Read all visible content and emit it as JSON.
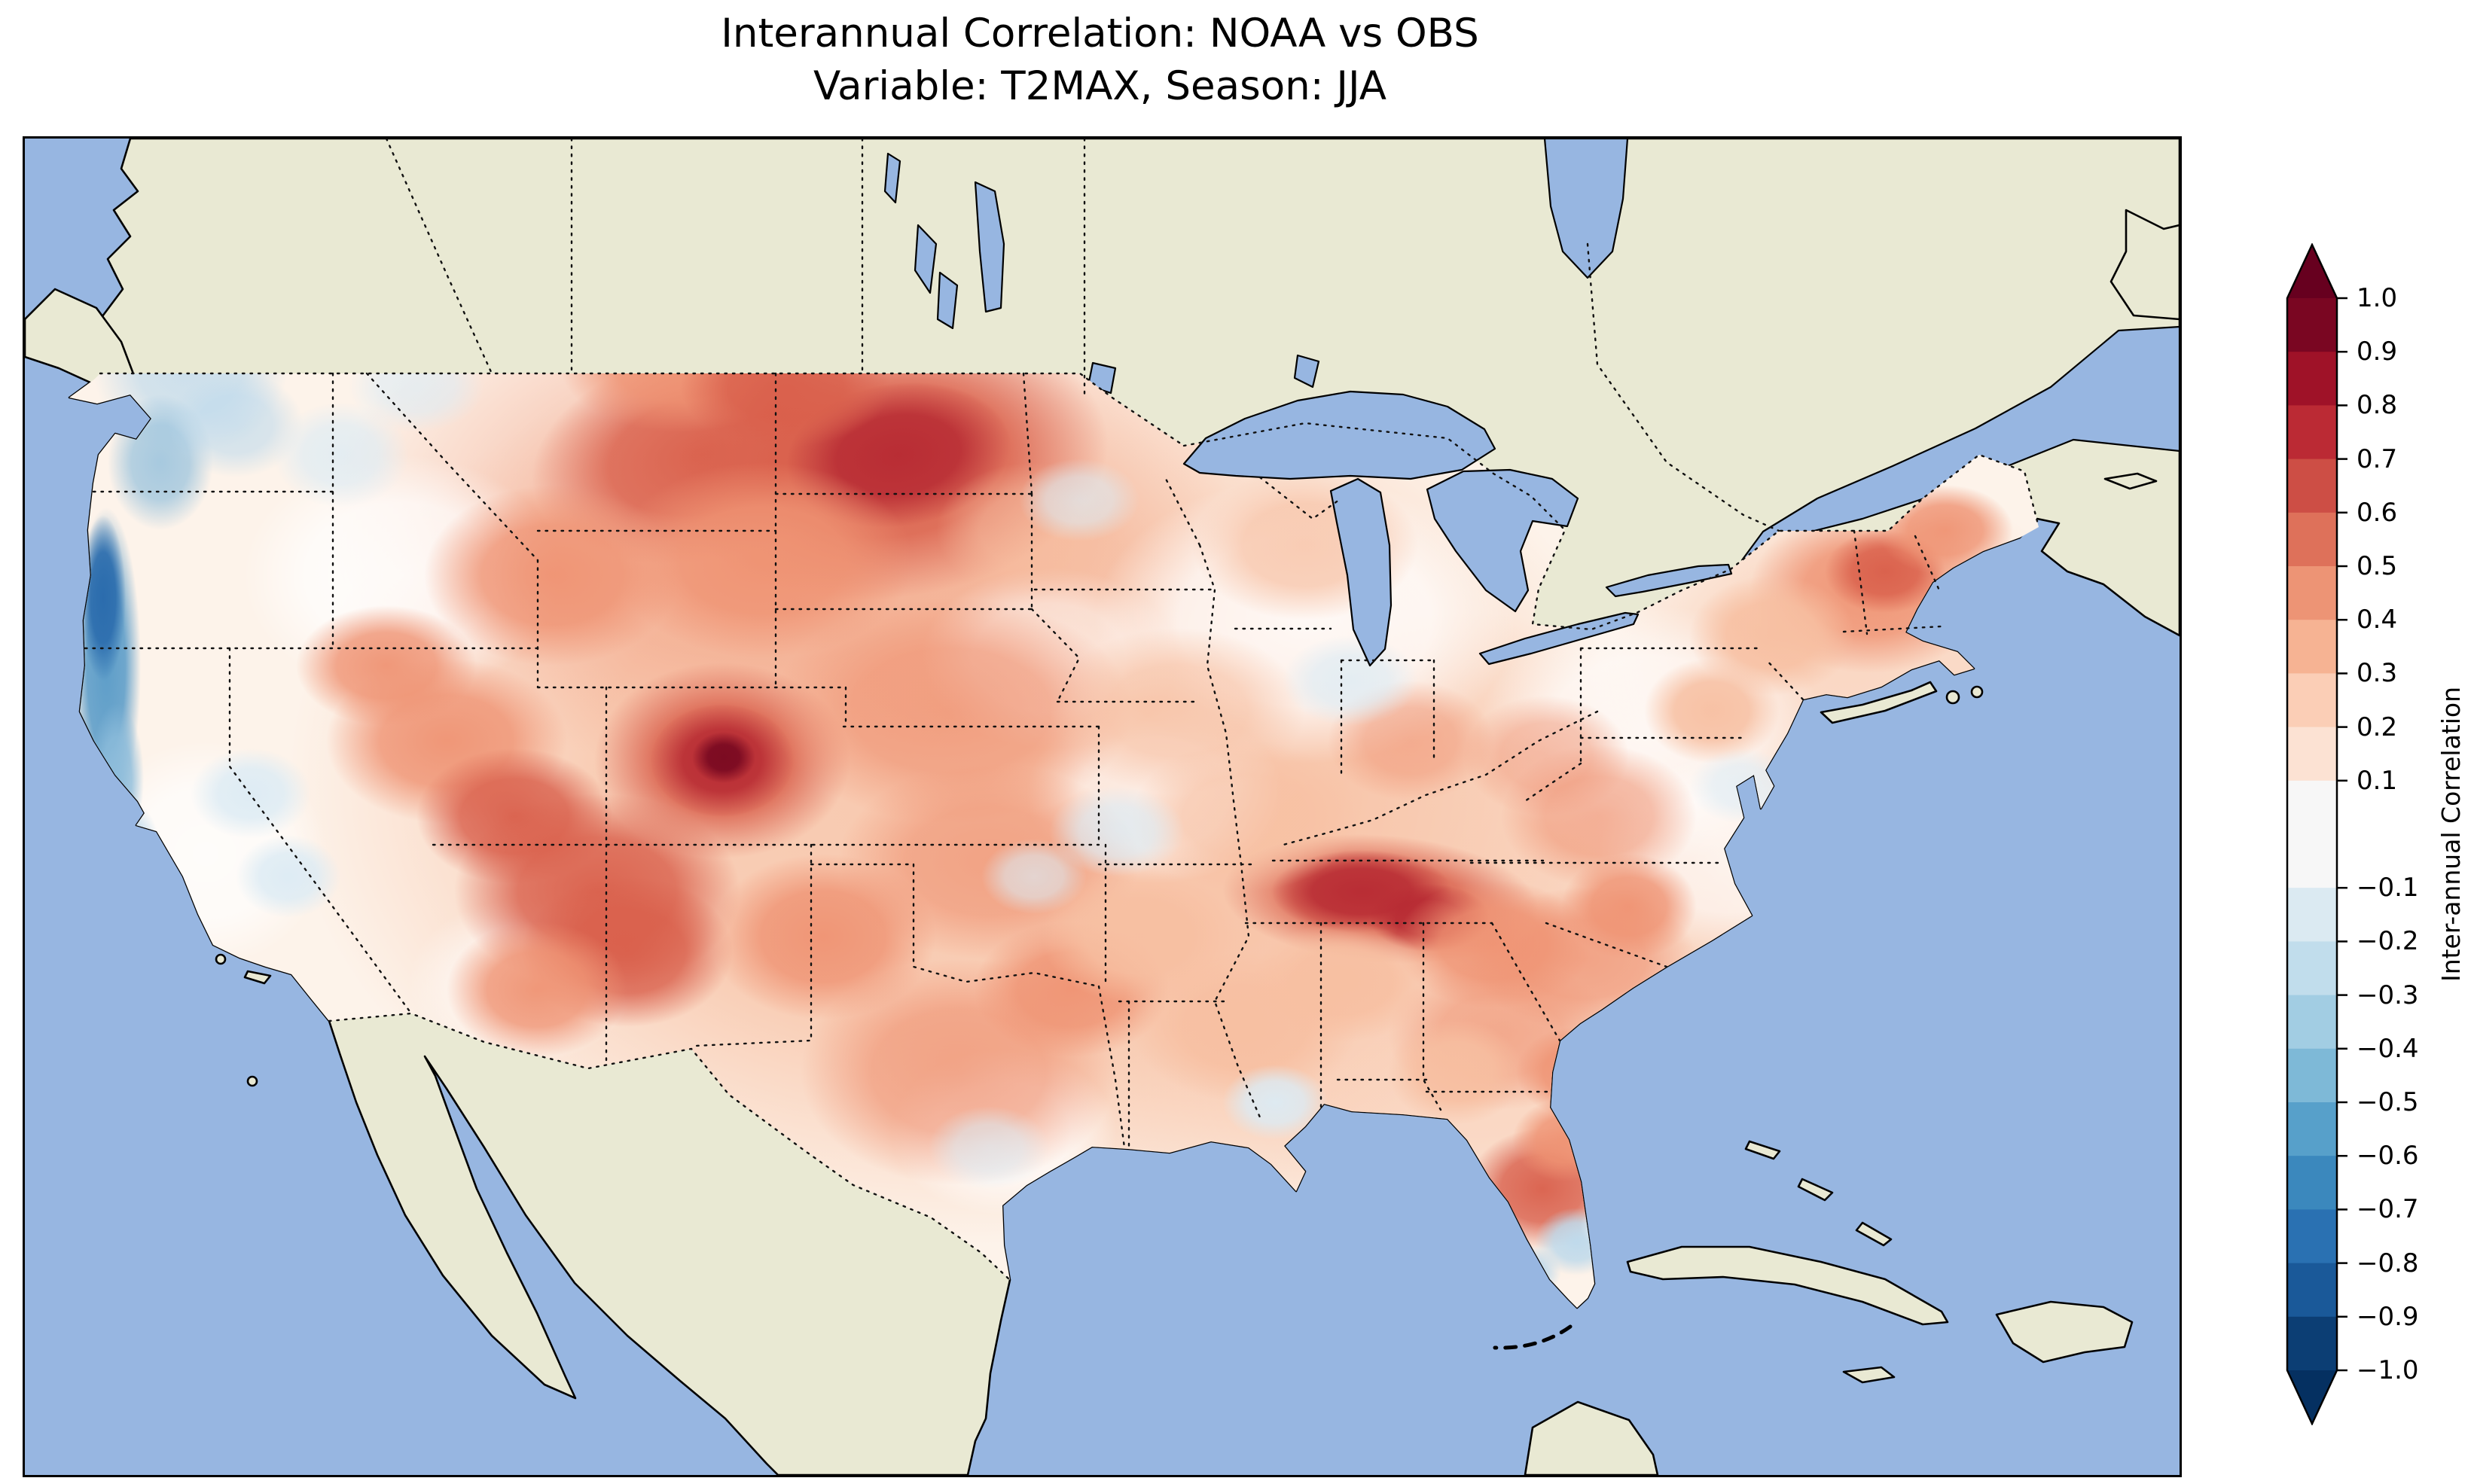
{
  "title": {
    "line1": "Interannual Correlation: NOAA vs OBS",
    "line2": "Variable: T2MAX, Season: JJA"
  },
  "map": {
    "ocean_color": "#97b6e1",
    "land_color": "#e9e9d3",
    "us_base_color": "#fdf3ea",
    "coastline_color": "#000000",
    "border_style": "dotted"
  },
  "colorbar": {
    "label": "Inter-annual Correlation",
    "extend_over_color": "#67001f",
    "extend_under_color": "#053061",
    "band_colors_top_to_bottom": [
      "#7a0622",
      "#9f1228",
      "#bb2a34",
      "#cd4e45",
      "#de715a",
      "#ed9475",
      "#f6b393",
      "#fbceb6",
      "#fce2d3",
      "#f7f7f7",
      "#dbeaf2",
      "#c1ddec",
      "#a2cde3",
      "#7eb9d7",
      "#57a0ca",
      "#3b88bd",
      "#2a71b2",
      "#1a5999",
      "#0c3e74"
    ],
    "ticks": [
      {
        "value": 1.0,
        "label": "1.0"
      },
      {
        "value": 0.9,
        "label": "0.9"
      },
      {
        "value": 0.8,
        "label": "0.8"
      },
      {
        "value": 0.7,
        "label": "0.7"
      },
      {
        "value": 0.6,
        "label": "0.6"
      },
      {
        "value": 0.5,
        "label": "0.5"
      },
      {
        "value": 0.4,
        "label": "0.4"
      },
      {
        "value": 0.3,
        "label": "0.3"
      },
      {
        "value": 0.2,
        "label": "0.2"
      },
      {
        "value": 0.1,
        "label": "0.1"
      },
      {
        "value": -0.1,
        "label": "−0.1"
      },
      {
        "value": -0.2,
        "label": "−0.2"
      },
      {
        "value": -0.3,
        "label": "−0.3"
      },
      {
        "value": -0.4,
        "label": "−0.4"
      },
      {
        "value": -0.5,
        "label": "−0.5"
      },
      {
        "value": -0.6,
        "label": "−0.6"
      },
      {
        "value": -0.7,
        "label": "−0.7"
      },
      {
        "value": -0.8,
        "label": "−0.8"
      },
      {
        "value": -0.9,
        "label": "−0.9"
      },
      {
        "value": -1.0,
        "label": "−1.0"
      }
    ]
  },
  "chart_data": {
    "type": "heatmap",
    "title": "Interannual Correlation: NOAA vs OBS",
    "subtitle": "Variable: T2MAX, Season: JJA",
    "colorbar_label": "Inter-annual Correlation",
    "value_range": [
      -1.0,
      1.0
    ],
    "contour_interval": 0.1,
    "colormap": "RdBu_r (blue = negative, white = near zero, red = positive)",
    "geography": "Contiguous United States, field masked to US land; Canada and Mexico shown as plain land, oceans and Great Lakes blue",
    "region_values_approx": [
      {
        "region": "Eastern Montana / western North Dakota (northern Plains)",
        "correlation": 0.7
      },
      {
        "region": "North/South Dakota core",
        "correlation": 0.8
      },
      {
        "region": "Wyoming / Idaho interior",
        "correlation": 0.5
      },
      {
        "region": "Central Colorado dark core",
        "correlation": 0.9
      },
      {
        "region": "Four Corners / Arizona-New Mexico",
        "correlation": 0.6
      },
      {
        "region": "Great Basin (Nevada / Utah)",
        "correlation": 0.5
      },
      {
        "region": "Nebraska / Kansas plains",
        "correlation": 0.4
      },
      {
        "region": "Texas interior",
        "correlation": 0.4
      },
      {
        "region": "Tennessee / southern Appalachians band",
        "correlation": 0.7
      },
      {
        "region": "Carolinas / Virginia",
        "correlation": 0.4
      },
      {
        "region": "New England",
        "correlation": 0.5
      },
      {
        "region": "Upper Midwest / Ohio Valley (near-neutral patches)",
        "correlation": 0.1
      },
      {
        "region": "Missouri / Kansas border pale patch",
        "correlation": -0.1
      },
      {
        "region": "California coastal strip",
        "correlation": -0.6
      },
      {
        "region": "Pacific Northwest coast and inland",
        "correlation": -0.3
      },
      {
        "region": "Central Florida spots",
        "correlation": -0.3
      },
      {
        "region": "Central Florida red spot",
        "correlation": 0.5
      },
      {
        "region": "Gulf Coast / Southeast general",
        "correlation": 0.3
      }
    ]
  }
}
